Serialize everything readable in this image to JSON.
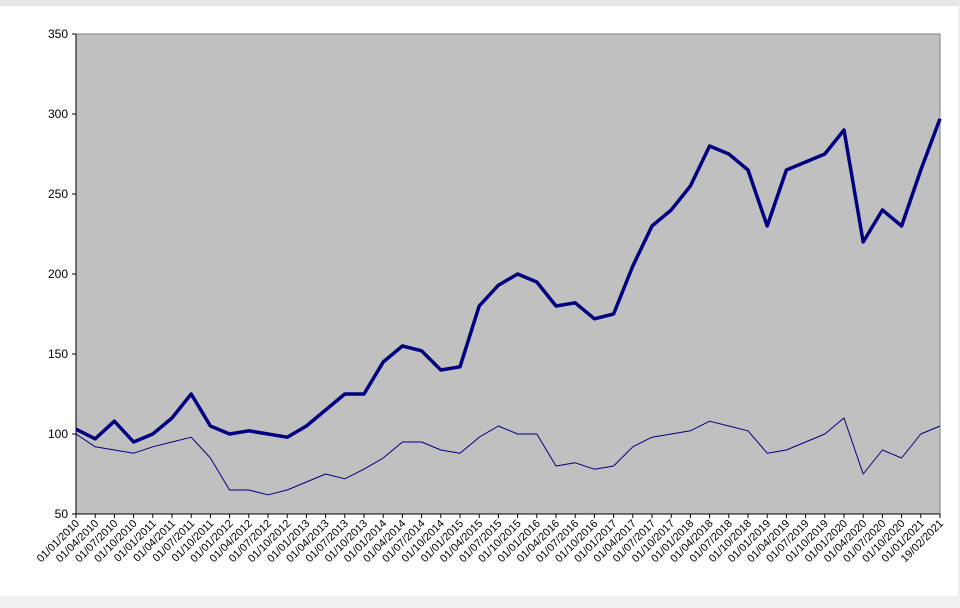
{
  "chart_data": {
    "type": "line",
    "categories": [
      "01/01/2010",
      "01/04/2010",
      "01/07/2010",
      "01/10/2010",
      "01/01/2011",
      "01/04/2011",
      "01/07/2011",
      "01/10/2011",
      "01/01/2012",
      "01/04/2012",
      "01/07/2012",
      "01/10/2012",
      "01/01/2013",
      "01/04/2013",
      "01/07/2013",
      "01/10/2013",
      "01/01/2014",
      "01/04/2014",
      "01/07/2014",
      "01/10/2014",
      "01/01/2015",
      "01/04/2015",
      "01/07/2015",
      "01/10/2015",
      "01/01/2016",
      "01/04/2016",
      "01/07/2016",
      "01/10/2016",
      "01/01/2017",
      "01/04/2017",
      "01/07/2017",
      "01/10/2017",
      "01/01/2018",
      "01/04/2018",
      "01/07/2018",
      "01/10/2018",
      "01/01/2019",
      "01/04/2019",
      "01/07/2019",
      "01/10/2019",
      "01/01/2020",
      "01/04/2020",
      "01/07/2020",
      "01/10/2020",
      "01/01/2021",
      "19/02/2021"
    ],
    "series": [
      {
        "color": "#000080",
        "width": 3.5,
        "values": [
          103,
          97,
          108,
          95,
          100,
          110,
          125,
          105,
          100,
          102,
          100,
          98,
          105,
          115,
          125,
          125,
          145,
          155,
          152,
          140,
          142,
          180,
          193,
          200,
          195,
          180,
          182,
          172,
          175,
          205,
          230,
          240,
          255,
          280,
          275,
          265,
          230,
          265,
          270,
          275,
          290,
          220,
          240,
          230,
          265,
          297
        ]
      },
      {
        "color": "#000080",
        "width": 1,
        "values": [
          100,
          92,
          90,
          88,
          92,
          95,
          98,
          85,
          65,
          65,
          62,
          65,
          70,
          75,
          72,
          78,
          85,
          95,
          95,
          90,
          88,
          98,
          105,
          100,
          100,
          80,
          82,
          78,
          80,
          92,
          98,
          100,
          102,
          108,
          105,
          102,
          88,
          90,
          95,
          100,
          110,
          75,
          90,
          85,
          100,
          105
        ]
      }
    ],
    "ylim": [
      50,
      350
    ],
    "yticks": [
      50,
      100,
      150,
      200,
      250,
      300,
      350
    ],
    "plot_background": "#c0c0c0"
  }
}
